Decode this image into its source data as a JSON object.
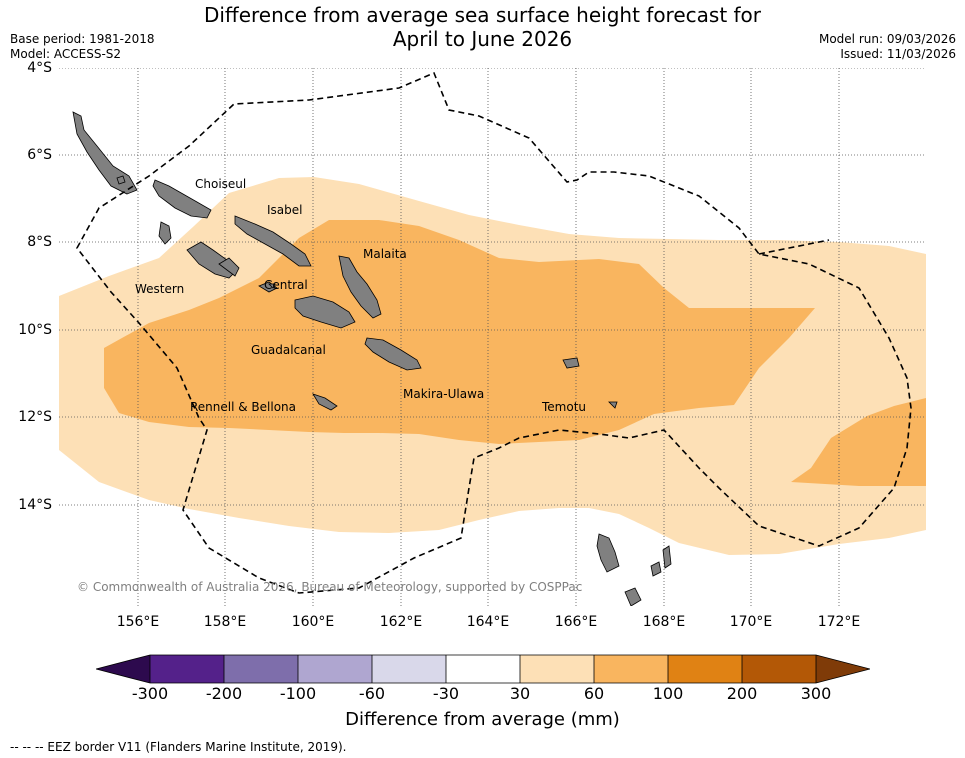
{
  "title": {
    "line1": "Difference from average sea surface height forecast for",
    "line2": "April to June 2026"
  },
  "meta": {
    "base_period": "Base period: 1981-2018",
    "model": "Model: ACCESS-S2",
    "model_run": "Model run: 09/03/2026",
    "issued": "Issued: 11/03/2026"
  },
  "map": {
    "latitude_labels": [
      "4°S",
      "6°S",
      "8°S",
      "10°S",
      "12°S",
      "14°S"
    ],
    "longitude_labels": [
      "156°E",
      "158°E",
      "160°E",
      "162°E",
      "164°E",
      "166°E",
      "168°E",
      "170°E",
      "172°E"
    ],
    "regions": [
      "Choiseul",
      "Isabel",
      "Malaita",
      "Western",
      "Central",
      "Guadalcanal",
      "Rennell & Bellona",
      "Makira-Ulawa",
      "Temotu"
    ],
    "copyright": "© Commonwealth of Australia 2026, Bureau of Meteorology, supported by COSPPac"
  },
  "colorbar": {
    "title": "Difference from average (mm)",
    "tick_labels": [
      "-300",
      "-200",
      "-100",
      "-60",
      "-30",
      "30",
      "60",
      "100",
      "200",
      "300"
    ],
    "colors": {
      "under": "#2d0a4e",
      "bins": [
        "#54218a",
        "#7e6eab",
        "#afa6d0",
        "#d9d8ea",
        "#ffffff",
        "#fde0b6",
        "#f9b55f",
        "#e08214",
        "#b35806"
      ],
      "over": "#7f3b08"
    }
  },
  "colors": {
    "land": "#808080",
    "grid": "#555555",
    "eez": "#000000",
    "anomaly_30_60": "#fde0b6",
    "anomaly_60_100": "#f9b55f"
  },
  "legend": {
    "eez_label": "--  --  -- EEZ border V11 (Flanders Marine Institute, 2019)."
  }
}
